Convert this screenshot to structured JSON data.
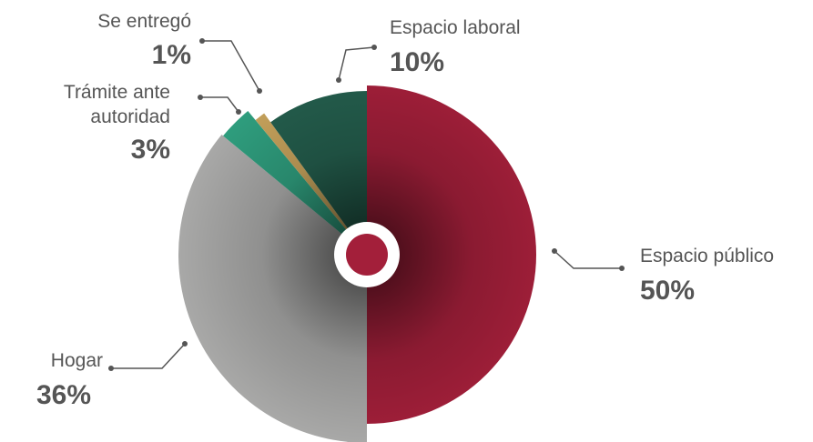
{
  "chart_data": {
    "type": "pie",
    "categories": [
      "Espacio público",
      "Hogar",
      "Trámite ante autoridad",
      "Se entregó",
      "Espacio laboral"
    ],
    "values": [
      50,
      36,
      3,
      1,
      10
    ],
    "value_labels": [
      "50%",
      "36%",
      "3%",
      "1%",
      "10%"
    ],
    "colors": [
      "#a31f3a",
      "#a9a9a8",
      "#2f9e7e",
      "#c7a35c",
      "#245e4d"
    ]
  }
}
